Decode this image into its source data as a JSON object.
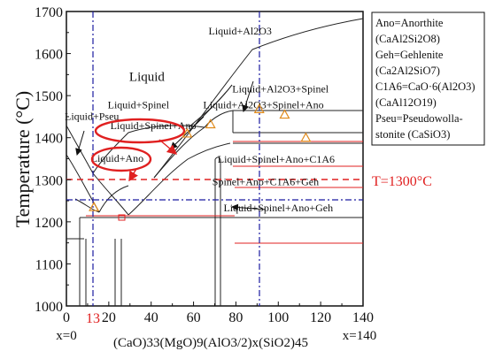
{
  "chart_data": {
    "type": "line",
    "title": "",
    "xlabel": "(CaO)33(MgO)9(AlO3/2)x(SiO2)45",
    "ylabel": "Temperature (°C)",
    "xlim": [
      0,
      140
    ],
    "ylim": [
      1000,
      1700
    ],
    "x_ticks": [
      0,
      20,
      40,
      60,
      80,
      100,
      120,
      140
    ],
    "y_ticks": [
      1000,
      1100,
      1200,
      1300,
      1400,
      1500,
      1600,
      1700
    ],
    "x_tick_labels": [
      "0",
      "20",
      "40",
      "60",
      "80",
      "100",
      "120",
      "140"
    ],
    "y_tick_labels": [
      "1000",
      "1100",
      "1200",
      "1300",
      "1400",
      "1500",
      "1600",
      "1700"
    ],
    "x_end_labels": {
      "left": "x=0",
      "right": "x=140"
    },
    "special_x_label": {
      "x": 13,
      "text": "13",
      "color": "#e02020"
    },
    "reference_line": {
      "y": 1300,
      "label": "T=1300°C",
      "color": "#e02020"
    },
    "vertical_reference_lines": [
      13,
      91
    ],
    "horizontal_reference_line": 1255,
    "region_labels": [
      {
        "text": "Liquid",
        "x": 38,
        "y": 1535
      },
      {
        "text": "Liquid+Al2O3",
        "x": 82,
        "y": 1645
      },
      {
        "text": "Liquid+Al2O3+Spinel",
        "x": 101,
        "y": 1508
      },
      {
        "text": "Liquid+Spinel",
        "x": 34,
        "y": 1470
      },
      {
        "text": "Liquid+Al2O3+Spinel+Ano",
        "x": 93,
        "y": 1470
      },
      {
        "text": "Liquid+Pseu",
        "x": 12,
        "y": 1443
      },
      {
        "text": "Liquid+Spinel+Ano",
        "x": 41,
        "y": 1420
      },
      {
        "text": "Liquid+Ano",
        "x": 24,
        "y": 1343
      },
      {
        "text": "Liquid+Spinel+Ano+C1A6",
        "x": 99,
        "y": 1341
      },
      {
        "text": "Spinel+Ano+C1A6+Geh",
        "x": 94,
        "y": 1287
      },
      {
        "text": "Liquid+Spinel+Ano+Geh",
        "x": 100,
        "y": 1225
      }
    ],
    "experimental_points": [
      [
        13,
        1235
      ],
      [
        57,
        1410
      ],
      [
        68,
        1432
      ],
      [
        91,
        1468
      ],
      [
        103,
        1455
      ],
      [
        113,
        1400
      ]
    ],
    "legend_title_lines": [
      "Ano=Anorthite",
      "(CaAl2Si2O8)",
      "Geh=Gehlenite",
      "(Ca2Al2SiO7)",
      "C1A6=CaO·6(Al2O3)",
      "(CaAl12O19)",
      "Pseu=Pseudowolla-",
      "stonite (CaSiO3)"
    ],
    "grid": false,
    "legend": "right"
  },
  "colors": {
    "phase_boundary": "#222222",
    "red": "#e02020",
    "blue": "#1a1aa0",
    "marker": "#e08a1a"
  }
}
